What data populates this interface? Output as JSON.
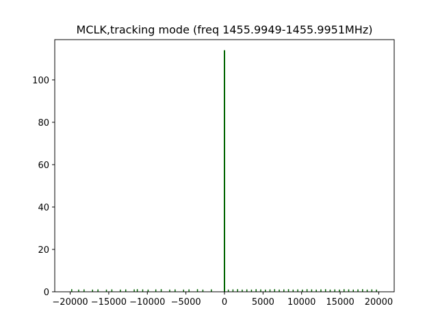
{
  "chart_data": {
    "type": "bar",
    "title": "MCLK,tracking mode (freq 1455.9949-1455.9951MHz)",
    "xlabel": "",
    "ylabel": "",
    "xlim": [
      -22000,
      22000
    ],
    "ylim": [
      0,
      119
    ],
    "grid": false,
    "series_color": "#006400",
    "x_ticks": [
      -20000,
      -15000,
      -10000,
      -5000,
      0,
      5000,
      10000,
      15000,
      20000
    ],
    "x_tick_labels": [
      "−20000",
      "−15000",
      "−10000",
      "−5000",
      "0",
      "5000",
      "10000",
      "15000",
      "20000"
    ],
    "y_ticks": [
      0,
      20,
      40,
      60,
      80,
      100
    ],
    "y_tick_labels": [
      "0",
      "20",
      "40",
      "60",
      "80",
      "100"
    ],
    "x": [
      -19800,
      -18900,
      -18200,
      -17100,
      -16400,
      -15300,
      -14600,
      -13500,
      -12800,
      -11700,
      -11300,
      -10600,
      -9900,
      -8900,
      -8200,
      -7100,
      -6400,
      -5300,
      -4600,
      -3500,
      -2800,
      -1700,
      0,
      500,
      1100,
      1700,
      2300,
      2900,
      3500,
      4100,
      4700,
      5300,
      5900,
      6500,
      7100,
      7700,
      8300,
      8900,
      9500,
      10100,
      10700,
      11300,
      11900,
      12500,
      13100,
      13700,
      14300,
      14900,
      15500,
      16100,
      16700,
      17300,
      17900,
      18500,
      19100,
      19700
    ],
    "values": [
      0.6,
      0.4,
      0.5,
      0.4,
      0.5,
      0.4,
      0.5,
      0.4,
      0.5,
      0.5,
      0.6,
      0.5,
      0.4,
      0.5,
      0.6,
      0.4,
      0.5,
      0.4,
      0.5,
      0.6,
      0.4,
      0.5,
      114,
      0.4,
      0.5,
      0.6,
      0.4,
      0.5,
      0.4,
      0.6,
      0.5,
      0.4,
      0.5,
      0.6,
      0.4,
      0.5,
      0.6,
      0.4,
      0.5,
      0.4,
      0.6,
      0.5,
      0.4,
      0.5,
      0.6,
      0.4,
      0.5,
      0.4,
      0.6,
      0.5,
      0.4,
      0.5,
      0.6,
      0.4,
      0.5,
      0.4
    ]
  }
}
